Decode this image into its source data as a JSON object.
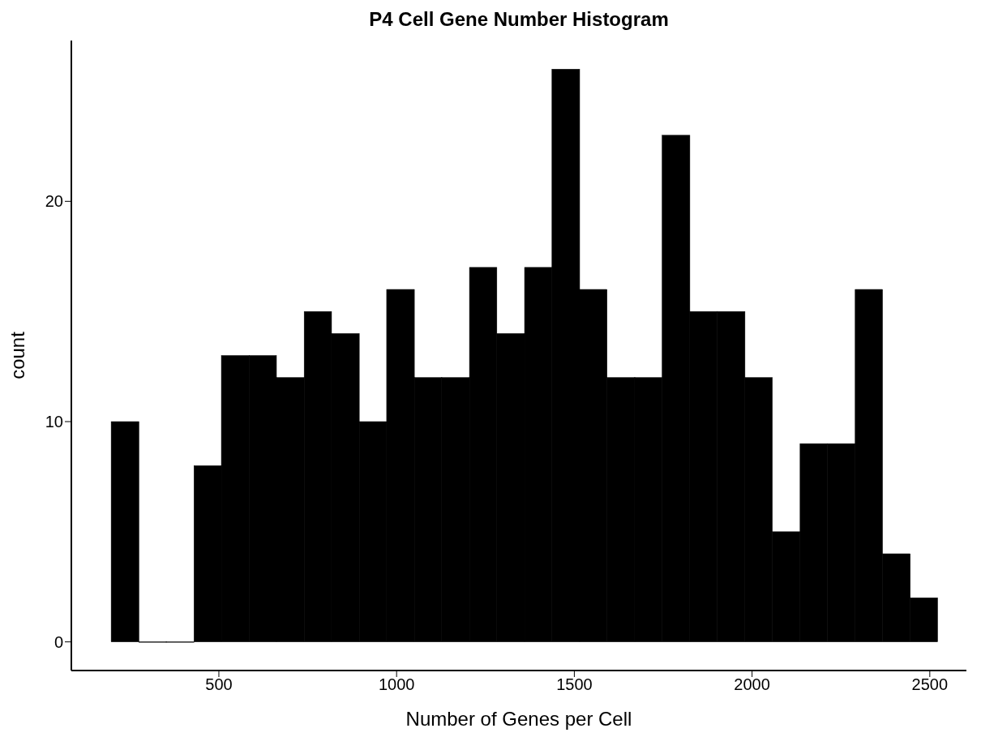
{
  "chart_data": {
    "type": "histogram",
    "title": "P4 Cell Gene Number Histogram",
    "xlabel": "Number of Genes per Cell",
    "ylabel": "count",
    "bins": [
      197,
      275,
      352,
      430,
      507,
      585,
      662,
      740,
      817,
      895,
      972,
      1050,
      1127,
      1205,
      1282,
      1360,
      1437,
      1515,
      1592,
      1670,
      1747,
      1825,
      1902,
      1980,
      2057,
      2135,
      2212,
      2290,
      2367,
      2445,
      2522
    ],
    "values": [
      10,
      0,
      0,
      8,
      13,
      13,
      12,
      15,
      14,
      10,
      16,
      12,
      12,
      17,
      14,
      17,
      26,
      16,
      12,
      12,
      23,
      15,
      15,
      12,
      5,
      9,
      9,
      16,
      4,
      2
    ],
    "color": "#000000",
    "xlim": [
      85,
      2603
    ],
    "xticks": [
      500,
      1000,
      1500,
      2000,
      2500
    ],
    "ylim": [
      -1.3,
      27.3
    ],
    "yticks": [
      0,
      10,
      20
    ],
    "grid": false
  }
}
